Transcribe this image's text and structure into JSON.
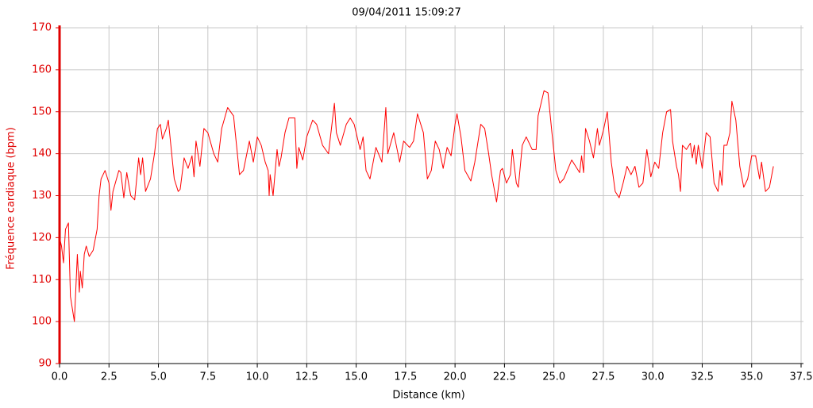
{
  "chart_data": {
    "type": "line",
    "title": "09/04/2011 15:09:27",
    "xlabel": "Distance (km)",
    "ylabel": "Fréquence cardiaque (bpm)",
    "color": "#ff0000",
    "axis_color": "#e00000",
    "grid": true,
    "xlim": [
      0,
      37.5
    ],
    "ylim": [
      90,
      170
    ],
    "xticks": [
      {
        "value": 0,
        "label": "0.0"
      },
      2.5,
      {
        "value": 5,
        "label": "5.0"
      },
      7.5,
      {
        "value": 10,
        "label": "10.0"
      },
      12.5,
      {
        "value": 15,
        "label": "15.0"
      },
      17.5,
      {
        "value": 20,
        "label": "20.0"
      },
      22.5,
      {
        "value": 25,
        "label": "25.0"
      },
      27.5,
      {
        "value": 30,
        "label": "30.0"
      },
      32.5,
      {
        "value": 35,
        "label": "35.0"
      },
      37.5
    ],
    "yticks": [
      90,
      100,
      110,
      120,
      130,
      140,
      150,
      160,
      170
    ],
    "x": [
      0,
      0.1,
      0.2,
      0.3,
      0.45,
      0.55,
      0.75,
      0.9,
      1.0,
      1.05,
      1.15,
      1.25,
      1.35,
      1.5,
      1.7,
      1.9,
      2.0,
      2.1,
      2.3,
      2.5,
      2.6,
      2.7,
      3.0,
      3.1,
      3.25,
      3.4,
      3.6,
      3.8,
      4.0,
      4.1,
      4.2,
      4.35,
      4.6,
      4.8,
      4.95,
      5.1,
      5.2,
      5.4,
      5.5,
      5.8,
      6.0,
      6.1,
      6.3,
      6.5,
      6.7,
      6.8,
      6.9,
      7.1,
      7.3,
      7.5,
      7.8,
      8.0,
      8.2,
      8.5,
      8.8,
      9.1,
      9.3,
      9.6,
      9.8,
      10.0,
      10.2,
      10.4,
      10.55,
      10.6,
      10.65,
      10.8,
      11.0,
      11.1,
      11.2,
      11.4,
      11.6,
      11.9,
      12.0,
      12.1,
      12.3,
      12.5,
      12.8,
      13.0,
      13.3,
      13.6,
      13.9,
      14.0,
      14.2,
      14.5,
      14.7,
      14.9,
      15.2,
      15.35,
      15.5,
      15.7,
      16.0,
      16.3,
      16.5,
      16.6,
      16.9,
      17.2,
      17.4,
      17.7,
      17.9,
      18.1,
      18.4,
      18.6,
      18.8,
      19.0,
      19.2,
      19.4,
      19.6,
      19.8,
      20.0,
      20.1,
      20.3,
      20.5,
      20.8,
      21.0,
      21.3,
      21.5,
      21.7,
      21.85,
      22.1,
      22.3,
      22.4,
      22.6,
      22.8,
      22.9,
      23.1,
      23.2,
      23.4,
      23.6,
      23.9,
      24.1,
      24.2,
      24.5,
      24.7,
      24.9,
      25.1,
      25.3,
      25.5,
      25.9,
      26.1,
      26.3,
      26.4,
      26.5,
      26.6,
      26.8,
      27.0,
      27.2,
      27.3,
      27.5,
      27.7,
      27.9,
      28.1,
      28.3,
      28.5,
      28.7,
      28.9,
      29.1,
      29.3,
      29.5,
      29.7,
      29.9,
      30.1,
      30.3,
      30.5,
      30.7,
      30.9,
      31.0,
      31.2,
      31.3,
      31.4,
      31.5,
      31.7,
      31.9,
      32.0,
      32.1,
      32.2,
      32.3,
      32.5,
      32.7,
      32.9,
      33.1,
      33.3,
      33.4,
      33.5,
      33.6,
      33.75,
      33.9,
      34.0,
      34.2,
      34.4,
      34.6,
      34.8,
      35.0,
      35.2,
      35.4,
      35.5,
      35.7,
      35.9,
      36.1
    ],
    "values": [
      120,
      118,
      114,
      122,
      123.5,
      106,
      100,
      116,
      107,
      112,
      108,
      116,
      118,
      115.5,
      117,
      122,
      130,
      134,
      136,
      133,
      126.5,
      131,
      136,
      135.5,
      129.5,
      135.5,
      130,
      129,
      139,
      135,
      139,
      131,
      134,
      140,
      146,
      147,
      143.5,
      146,
      148,
      134,
      131,
      131.5,
      139,
      136.5,
      139.5,
      134.5,
      143,
      137,
      146,
      145,
      140,
      138,
      146,
      151,
      149,
      135,
      136,
      143,
      138,
      144,
      142,
      138,
      136,
      130,
      135,
      130,
      141,
      137,
      139,
      145,
      148.5,
      148.5,
      136.5,
      141.5,
      138.5,
      144,
      148,
      147,
      142,
      140,
      152,
      145,
      142,
      147,
      148.5,
      147,
      141,
      144,
      136,
      134,
      141.5,
      138,
      151,
      140,
      145,
      138,
      143,
      141.5,
      143,
      149.5,
      145,
      134,
      136,
      143,
      141,
      136.5,
      141.5,
      139.5,
      147,
      149.5,
      144,
      136,
      133.5,
      138,
      147,
      146,
      140,
      135,
      128.5,
      136,
      136.5,
      133,
      135,
      141,
      133,
      132,
      142,
      144,
      141,
      141,
      149,
      155,
      154.5,
      145,
      136,
      133,
      134,
      138.5,
      137,
      135.5,
      139.5,
      135.5,
      146,
      143,
      139,
      146,
      142,
      145.5,
      150,
      138,
      131,
      129.5,
      133,
      137,
      135,
      137,
      132,
      133,
      141,
      134.5,
      138,
      136.5,
      145,
      150,
      150.5,
      143,
      137,
      135,
      131,
      142,
      141,
      142.5,
      139,
      142,
      137.5,
      142,
      136.5,
      145,
      144,
      133,
      131,
      136,
      132.5,
      142,
      142,
      145,
      152.5,
      148,
      137,
      132,
      134,
      139.5,
      139.5,
      134,
      138,
      131,
      132,
      137
    ]
  }
}
